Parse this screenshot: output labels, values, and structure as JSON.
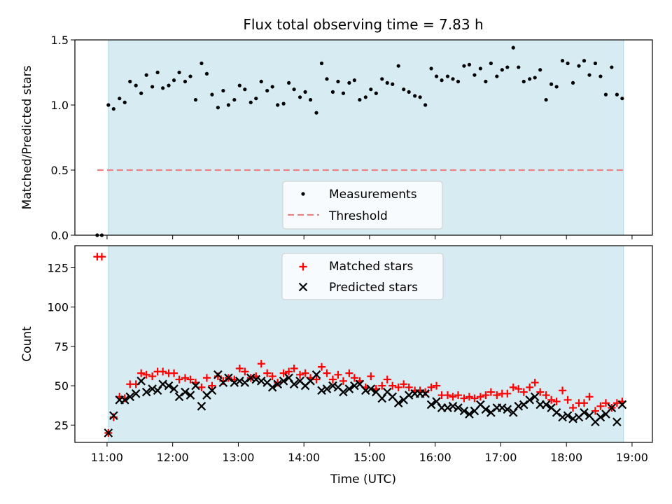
{
  "title": "Flux total observing time = 7.83 h",
  "xlabel": "Time (UTC)",
  "colors": {
    "shade": "#add8e6",
    "points": "#000000",
    "threshold": "#f08080",
    "matched": "#ff0000",
    "predicted": "#000000"
  },
  "chart_data": [
    {
      "type": "scatter",
      "ylabel": "Matched/Predicted stars",
      "ylim": [
        0,
        1.5
      ],
      "yticks": [
        "0.0",
        "0.5",
        "1.0",
        "1.5"
      ],
      "xlim": [
        10.51,
        19.31
      ],
      "shaded_interval": [
        11.02,
        18.87
      ],
      "legend": {
        "position": "bottom-center",
        "measurements": "Measurements",
        "threshold": "Threshold"
      },
      "threshold": {
        "value": 0.5,
        "x_range": [
          10.85,
          18.87
        ]
      },
      "series": [
        {
          "name": "Measurements",
          "x": [
            10.85,
            10.92,
            11.02,
            11.1,
            11.19,
            11.27,
            11.35,
            11.44,
            11.52,
            11.6,
            11.69,
            11.77,
            11.85,
            11.94,
            12.02,
            12.1,
            12.19,
            12.27,
            12.35,
            12.44,
            12.52,
            12.6,
            12.69,
            12.77,
            12.85,
            12.94,
            13.02,
            13.1,
            13.19,
            13.27,
            13.35,
            13.44,
            13.52,
            13.6,
            13.69,
            13.77,
            13.85,
            13.94,
            14.02,
            14.1,
            14.19,
            14.27,
            14.35,
            14.44,
            14.52,
            14.6,
            14.69,
            14.77,
            14.85,
            14.94,
            15.02,
            15.1,
            15.19,
            15.27,
            15.35,
            15.44,
            15.52,
            15.6,
            15.69,
            15.77,
            15.85,
            15.94,
            16.02,
            16.1,
            16.19,
            16.27,
            16.35,
            16.44,
            16.52,
            16.6,
            16.69,
            16.77,
            16.85,
            16.94,
            17.02,
            17.1,
            17.19,
            17.27,
            17.35,
            17.44,
            17.52,
            17.6,
            17.69,
            17.77,
            17.85,
            17.94,
            18.02,
            18.1,
            18.19,
            18.27,
            18.35,
            18.44,
            18.52,
            18.6,
            18.69,
            18.77,
            18.85
          ],
          "y": [
            0.0,
            0.0,
            1.0,
            0.97,
            1.05,
            1.02,
            1.18,
            1.15,
            1.09,
            1.23,
            1.14,
            1.25,
            1.13,
            1.15,
            1.19,
            1.25,
            1.18,
            1.22,
            1.04,
            1.32,
            1.24,
            1.08,
            0.98,
            1.11,
            1.0,
            1.04,
            1.15,
            1.12,
            1.02,
            1.05,
            1.18,
            1.11,
            1.14,
            1.0,
            1.01,
            1.17,
            1.12,
            1.06,
            1.1,
            1.04,
            0.94,
            1.32,
            1.2,
            1.1,
            1.18,
            1.09,
            1.17,
            1.19,
            1.04,
            1.06,
            1.12,
            1.09,
            1.2,
            1.17,
            1.16,
            1.3,
            1.12,
            1.1,
            1.07,
            1.06,
            1.0,
            1.28,
            1.22,
            1.19,
            1.22,
            1.2,
            1.18,
            1.3,
            1.31,
            1.23,
            1.28,
            1.18,
            1.32,
            1.22,
            1.27,
            1.29,
            1.44,
            1.29,
            1.18,
            1.2,
            1.21,
            1.27,
            1.04,
            1.16,
            1.14,
            1.34,
            1.32,
            1.17,
            1.3,
            1.34,
            1.23,
            1.32,
            1.22,
            1.08,
            1.29,
            1.08,
            1.05
          ]
        }
      ]
    },
    {
      "type": "scatter",
      "ylabel": "Count",
      "ylim": [
        14,
        139
      ],
      "yticks": [
        "25",
        "50",
        "75",
        "100",
        "125"
      ],
      "xlim": [
        10.51,
        19.31
      ],
      "shaded_interval": [
        11.02,
        18.87
      ],
      "xticks": [
        "11:00",
        "12:00",
        "13:00",
        "14:00",
        "15:00",
        "16:00",
        "17:00",
        "18:00",
        "19:00"
      ],
      "legend": {
        "position": "top-center",
        "matched": "Matched stars",
        "predicted": "Predicted stars"
      },
      "series": [
        {
          "name": "Matched stars",
          "x": [
            10.85,
            10.92,
            11.02,
            11.1,
            11.19,
            11.27,
            11.35,
            11.44,
            11.52,
            11.6,
            11.69,
            11.77,
            11.85,
            11.94,
            12.02,
            12.1,
            12.19,
            12.27,
            12.35,
            12.44,
            12.52,
            12.6,
            12.69,
            12.77,
            12.85,
            12.94,
            13.02,
            13.1,
            13.19,
            13.27,
            13.35,
            13.44,
            13.52,
            13.6,
            13.69,
            13.77,
            13.85,
            13.94,
            14.02,
            14.1,
            14.19,
            14.27,
            14.35,
            14.44,
            14.52,
            14.6,
            14.69,
            14.77,
            14.85,
            14.94,
            15.02,
            15.1,
            15.19,
            15.27,
            15.35,
            15.44,
            15.52,
            15.6,
            15.69,
            15.77,
            15.85,
            15.94,
            16.02,
            16.1,
            16.19,
            16.27,
            16.35,
            16.44,
            16.52,
            16.6,
            16.69,
            16.77,
            16.85,
            16.94,
            17.02,
            17.1,
            17.19,
            17.27,
            17.35,
            17.44,
            17.52,
            17.6,
            17.69,
            17.77,
            17.85,
            17.94,
            18.02,
            18.1,
            18.19,
            18.27,
            18.35,
            18.44,
            18.52,
            18.6,
            18.69,
            18.77,
            18.85
          ],
          "y": [
            132,
            132,
            20,
            30,
            43,
            42,
            51,
            51,
            58,
            57,
            56,
            59,
            59,
            58,
            58,
            54,
            55,
            54,
            52,
            49,
            55,
            50,
            56,
            53,
            55,
            54,
            61,
            59,
            55,
            56,
            64,
            58,
            56,
            52,
            58,
            59,
            61,
            57,
            58,
            55,
            54,
            62,
            58,
            54,
            57,
            53,
            58,
            55,
            53,
            49,
            56,
            48,
            50,
            54,
            50,
            49,
            51,
            49,
            47,
            47,
            46,
            49,
            50,
            44,
            44,
            43,
            44,
            42,
            43,
            42,
            43,
            44,
            46,
            44,
            45,
            45,
            49,
            48,
            46,
            49,
            52,
            46,
            44,
            41,
            40,
            47,
            41,
            36,
            39,
            39,
            43,
            34,
            37,
            39,
            36,
            39,
            40
          ]
        },
        {
          "name": "Predicted stars",
          "x": [
            11.02,
            11.1,
            11.19,
            11.27,
            11.35,
            11.44,
            11.52,
            11.6,
            11.69,
            11.77,
            11.85,
            11.94,
            12.02,
            12.1,
            12.19,
            12.27,
            12.35,
            12.44,
            12.52,
            12.6,
            12.69,
            12.77,
            12.85,
            12.94,
            13.02,
            13.1,
            13.19,
            13.27,
            13.35,
            13.44,
            13.52,
            13.6,
            13.69,
            13.77,
            13.85,
            13.94,
            14.02,
            14.1,
            14.19,
            14.27,
            14.35,
            14.44,
            14.52,
            14.6,
            14.69,
            14.77,
            14.85,
            14.94,
            15.02,
            15.1,
            15.19,
            15.27,
            15.35,
            15.44,
            15.52,
            15.6,
            15.69,
            15.77,
            15.85,
            15.94,
            16.02,
            16.1,
            16.19,
            16.27,
            16.35,
            16.44,
            16.52,
            16.6,
            16.69,
            16.77,
            16.85,
            16.94,
            17.02,
            17.1,
            17.19,
            17.27,
            17.35,
            17.44,
            17.52,
            17.6,
            17.69,
            17.77,
            17.85,
            17.94,
            18.02,
            18.1,
            18.19,
            18.27,
            18.35,
            18.44,
            18.52,
            18.6,
            18.69,
            18.77,
            18.85
          ],
          "y": [
            20,
            31,
            41,
            41,
            43,
            45,
            53,
            46,
            48,
            47,
            51,
            50,
            48,
            43,
            46,
            44,
            50,
            37,
            44,
            47,
            57,
            52,
            55,
            52,
            53,
            52,
            55,
            54,
            53,
            52,
            49,
            51,
            53,
            55,
            51,
            53,
            50,
            53,
            57,
            47,
            48,
            50,
            49,
            46,
            48,
            50,
            51,
            47,
            48,
            46,
            42,
            46,
            43,
            39,
            41,
            44,
            45,
            45,
            45,
            38,
            40,
            36,
            36,
            37,
            36,
            34,
            32,
            34,
            38,
            35,
            33,
            36,
            36,
            35,
            33,
            37,
            38,
            41,
            43,
            38,
            38,
            36,
            33,
            30,
            31,
            29,
            30,
            33,
            31,
            27,
            30,
            32,
            36,
            27,
            38
          ]
        }
      ]
    }
  ]
}
